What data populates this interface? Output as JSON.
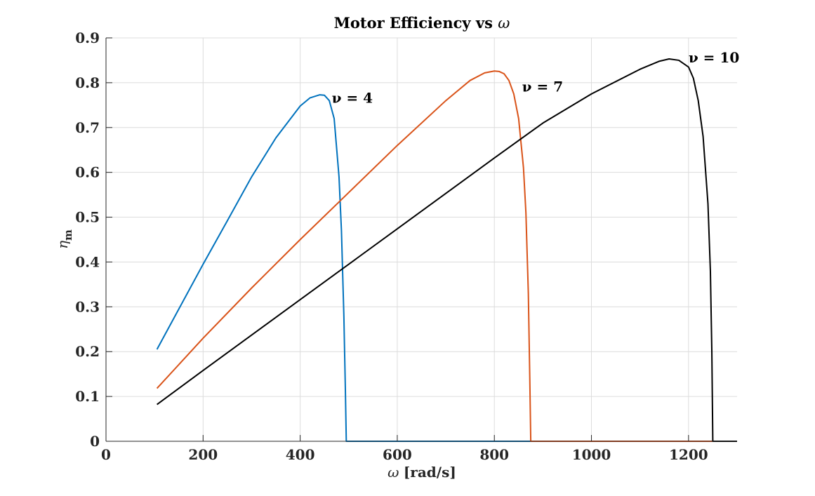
{
  "chart_data": {
    "type": "line",
    "title_prefix": "Motor Efficiency vs",
    "title_symbol": "ω",
    "xlabel_symbol": "ω",
    "xlabel_unit": "[rad/s]",
    "ylabel_symbol": "η",
    "ylabel_subscript": "m",
    "xlim": [
      0,
      1300
    ],
    "ylim": [
      0,
      0.9
    ],
    "xticks": [
      0,
      200,
      400,
      600,
      800,
      1000,
      1200
    ],
    "xtick_labels": [
      "0",
      "200",
      "400",
      "600",
      "800",
      "1000",
      "1200"
    ],
    "yticks": [
      0,
      0.1,
      0.2,
      0.3,
      0.4,
      0.5,
      0.6,
      0.7,
      0.8,
      0.9
    ],
    "ytick_labels": [
      "0",
      "0.1",
      "0.2",
      "0.3",
      "0.4",
      "0.5",
      "0.6",
      "0.7",
      "0.8",
      "0.9"
    ],
    "grid": true,
    "series": [
      {
        "color": "#0072BD",
        "x": [
          105,
          150,
          200,
          250,
          300,
          350,
          400,
          420,
          440,
          450,
          460,
          470,
          480,
          485,
          490,
          493,
          495,
          1300
        ],
        "y": [
          0.205,
          0.295,
          0.395,
          0.492,
          0.59,
          0.677,
          0.748,
          0.766,
          0.773,
          0.772,
          0.76,
          0.72,
          0.59,
          0.47,
          0.28,
          0.12,
          0,
          0
        ]
      },
      {
        "color": "#D95319",
        "x": [
          105,
          200,
          300,
          400,
          500,
          600,
          700,
          750,
          780,
          800,
          810,
          820,
          830,
          840,
          850,
          860,
          865,
          870,
          873,
          875,
          1300
        ],
        "y": [
          0.118,
          0.23,
          0.342,
          0.45,
          0.555,
          0.66,
          0.76,
          0.805,
          0.822,
          0.826,
          0.825,
          0.82,
          0.805,
          0.775,
          0.72,
          0.61,
          0.51,
          0.33,
          0.14,
          0,
          0
        ]
      },
      {
        "color": "#000000",
        "x": [
          105,
          200,
          300,
          400,
          500,
          600,
          700,
          800,
          900,
          1000,
          1100,
          1140,
          1160,
          1180,
          1200,
          1210,
          1220,
          1230,
          1240,
          1245,
          1248,
          1250,
          1300
        ],
        "y": [
          0.082,
          0.158,
          0.237,
          0.316,
          0.395,
          0.474,
          0.553,
          0.632,
          0.71,
          0.775,
          0.83,
          0.848,
          0.853,
          0.85,
          0.835,
          0.81,
          0.76,
          0.68,
          0.53,
          0.38,
          0.2,
          0,
          0
        ]
      }
    ],
    "annotations": [
      {
        "text": "ν = 4",
        "x": 465,
        "y": 0.755
      },
      {
        "text": "ν = 7",
        "x": 857,
        "y": 0.78
      },
      {
        "text": "ν = 10",
        "x": 1200,
        "y": 0.845
      }
    ]
  }
}
